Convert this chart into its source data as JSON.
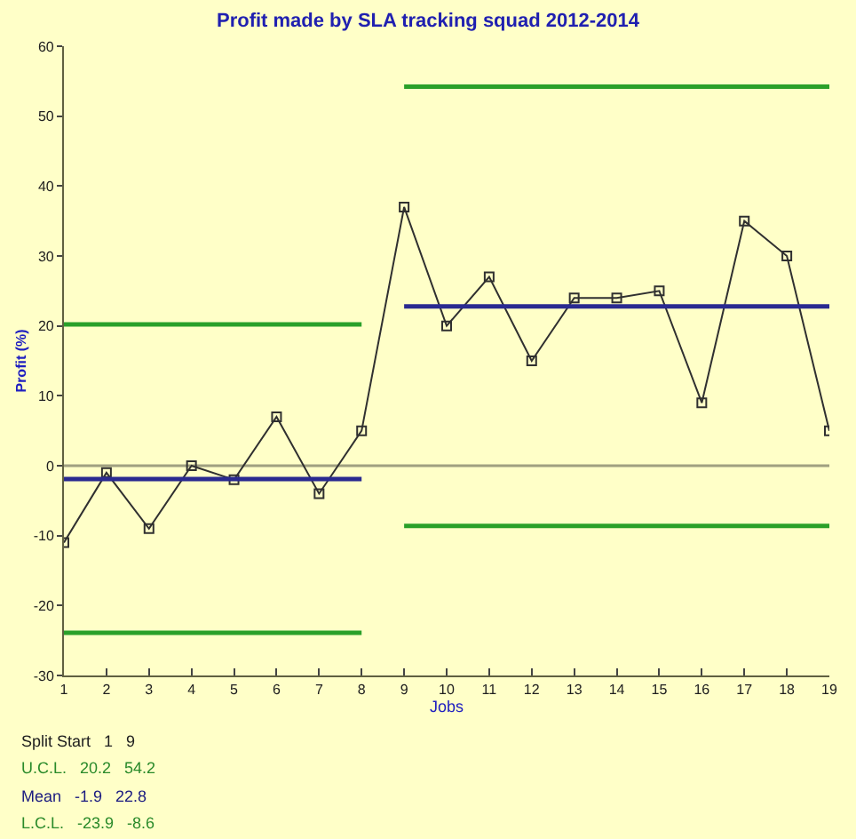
{
  "chart_data": {
    "type": "line",
    "title": "Profit made by SLA tracking squad 2012-2014",
    "xlabel": "Jobs",
    "ylabel": "Profit (%)",
    "x": [
      1,
      2,
      3,
      4,
      5,
      6,
      7,
      8,
      9,
      10,
      11,
      12,
      13,
      14,
      15,
      16,
      17,
      18,
      19
    ],
    "series": [
      {
        "color": "#303030",
        "marker": "square",
        "values": [
          -11,
          -1,
          -9,
          0,
          -2,
          7,
          -4,
          5,
          37,
          20,
          27,
          15,
          24,
          24,
          25,
          9,
          35,
          30,
          5
        ]
      },
      {
        "type": "line",
        "color": "#2aa02a",
        "marker": "none",
        "x": [
          1,
          8
        ],
        "values": [
          20.2,
          20.2
        ]
      },
      {
        "type": "line",
        "color": "#2aa02a",
        "marker": "none",
        "x": [
          9,
          19
        ],
        "values": [
          54.2,
          54.2
        ]
      },
      {
        "type": "line",
        "color": "#2a2a90",
        "marker": "none",
        "x": [
          1,
          8
        ],
        "values": [
          -1.9,
          -1.9
        ]
      },
      {
        "type": "line",
        "color": "#2a2a90",
        "marker": "none",
        "x": [
          9,
          19
        ],
        "values": [
          22.8,
          22.8
        ]
      },
      {
        "type": "line",
        "color": "#2aa02a",
        "marker": "none",
        "x": [
          1,
          8
        ],
        "values": [
          -23.9,
          -23.9
        ]
      },
      {
        "type": "line",
        "color": "#2aa02a",
        "marker": "none",
        "x": [
          9,
          19
        ],
        "values": [
          -8.6,
          -8.6
        ]
      }
    ],
    "ref_lines": [
      {
        "axis": "y",
        "value": 0,
        "color": "#a0a080"
      }
    ],
    "xlim": [
      1,
      19
    ],
    "xticks": [
      1,
      2,
      3,
      4,
      5,
      6,
      7,
      8,
      9,
      10,
      11,
      12,
      13,
      14,
      15,
      16,
      17,
      18,
      19
    ],
    "ylim": [
      -30,
      60
    ],
    "yticks": [
      -30,
      -20,
      -10,
      0,
      10,
      20,
      30,
      40,
      50,
      60
    ],
    "grid": false,
    "line_style": "solid",
    "annotations": [
      "Split Start   1   9",
      "U.C.L.   20.2   54.2",
      "Mean   -1.9   22.8",
      "L.C.L.   -23.9   -8.6"
    ]
  }
}
